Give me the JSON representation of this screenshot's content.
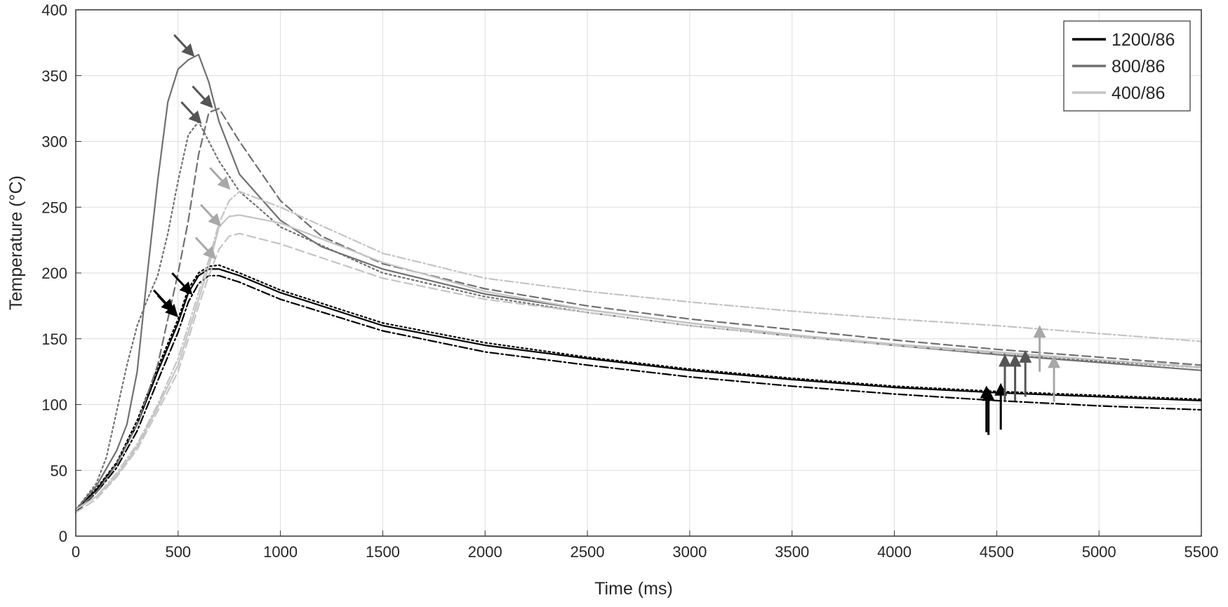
{
  "chart_data": {
    "type": "line",
    "title": "",
    "xlabel": "Time (ms)",
    "ylabel": "Temperature (°C)",
    "xlim": [
      0,
      5500
    ],
    "ylim": [
      0,
      400
    ],
    "xticks": [
      0,
      500,
      1000,
      1500,
      2000,
      2500,
      3000,
      3500,
      4000,
      4500,
      5000,
      5500
    ],
    "yticks": [
      0,
      50,
      100,
      150,
      200,
      250,
      300,
      350,
      400
    ],
    "grid": true,
    "legend_position": "top-right",
    "legend": [
      {
        "label": "1200/86",
        "color": "#000000"
      },
      {
        "label": "800/86",
        "color": "#707070"
      },
      {
        "label": "400/86",
        "color": "#c4c4c4"
      }
    ],
    "series": [
      {
        "group": "1200/86",
        "color": "#000000",
        "style": "solid",
        "x": [
          0,
          100,
          200,
          300,
          400,
          500,
          550,
          600,
          650,
          700,
          800,
          1000,
          1500,
          2000,
          2500,
          3000,
          3500,
          4000,
          4500,
          5000,
          5500
        ],
        "y": [
          20,
          35,
          55,
          85,
          125,
          162,
          185,
          198,
          203,
          203,
          198,
          185,
          160,
          145,
          135,
          126,
          119,
          113,
          109,
          106,
          103
        ]
      },
      {
        "group": "1200/86",
        "color": "#000000",
        "style": "dashdot",
        "x": [
          0,
          100,
          200,
          300,
          400,
          500,
          550,
          600,
          650,
          700,
          800,
          1000,
          1500,
          2000,
          2500,
          3000,
          3500,
          4000,
          4500,
          5000,
          5500
        ],
        "y": [
          18,
          33,
          52,
          80,
          118,
          155,
          178,
          192,
          198,
          198,
          193,
          180,
          156,
          140,
          130,
          121,
          114,
          108,
          103,
          99,
          96
        ]
      },
      {
        "group": "1200/86",
        "color": "#000000",
        "style": "dotted",
        "x": [
          0,
          100,
          200,
          300,
          400,
          500,
          550,
          600,
          650,
          700,
          800,
          1000,
          1500,
          2000,
          2500,
          3000,
          3500,
          4000,
          4500,
          5000,
          5500
        ],
        "y": [
          20,
          36,
          56,
          88,
          128,
          165,
          188,
          200,
          205,
          206,
          200,
          187,
          162,
          147,
          136,
          127,
          120,
          114,
          110,
          107,
          104
        ]
      },
      {
        "group": "800/86",
        "color": "#707070",
        "style": "solid",
        "x": [
          0,
          100,
          200,
          250,
          300,
          350,
          400,
          450,
          500,
          550,
          600,
          650,
          700,
          800,
          1000,
          1200,
          1500,
          2000,
          2500,
          3000,
          3500,
          4000,
          4500,
          5000,
          5500
        ],
        "y": [
          20,
          38,
          65,
          85,
          125,
          200,
          270,
          330,
          355,
          362,
          366,
          345,
          315,
          275,
          240,
          220,
          203,
          184,
          172,
          162,
          153,
          145,
          138,
          132,
          126
        ]
      },
      {
        "group": "800/86",
        "color": "#707070",
        "style": "dashed",
        "x": [
          0,
          100,
          200,
          300,
          400,
          450,
          500,
          550,
          600,
          650,
          700,
          800,
          1000,
          1200,
          1500,
          2000,
          2500,
          3000,
          3500,
          4000,
          4500,
          5000,
          5500
        ],
        "y": [
          20,
          33,
          55,
          85,
          130,
          165,
          200,
          240,
          290,
          322,
          325,
          300,
          255,
          228,
          207,
          188,
          175,
          165,
          157,
          149,
          142,
          136,
          130
        ]
      },
      {
        "group": "800/86",
        "color": "#707070",
        "style": "dotted",
        "x": [
          0,
          100,
          150,
          200,
          250,
          300,
          350,
          400,
          450,
          500,
          550,
          600,
          650,
          700,
          800,
          1000,
          1500,
          2000,
          2500,
          3000,
          3500,
          4000,
          4500,
          5000,
          5500
        ],
        "y": [
          20,
          40,
          60,
          95,
          130,
          160,
          180,
          198,
          230,
          270,
          305,
          315,
          300,
          285,
          262,
          235,
          200,
          182,
          170,
          160,
          152,
          145,
          139,
          133,
          128
        ]
      },
      {
        "group": "400/86",
        "color": "#c4c4c4",
        "style": "dashdot",
        "x": [
          0,
          100,
          200,
          300,
          400,
          500,
          550,
          600,
          650,
          700,
          750,
          800,
          1000,
          1500,
          2000,
          2500,
          3000,
          3500,
          4000,
          4500,
          5000,
          5500
        ],
        "y": [
          20,
          30,
          48,
          70,
          100,
          135,
          160,
          185,
          210,
          238,
          255,
          262,
          250,
          215,
          196,
          186,
          178,
          171,
          165,
          160,
          154,
          148
        ]
      },
      {
        "group": "400/86",
        "color": "#c4c4c4",
        "style": "solid",
        "x": [
          0,
          100,
          200,
          300,
          400,
          500,
          550,
          600,
          650,
          700,
          750,
          800,
          1000,
          1500,
          2000,
          2500,
          3000,
          3500,
          4000,
          4500,
          5000,
          5500
        ],
        "y": [
          20,
          30,
          46,
          68,
          98,
          130,
          155,
          180,
          205,
          235,
          243,
          244,
          238,
          208,
          186,
          172,
          162,
          153,
          146,
          140,
          134,
          128
        ]
      },
      {
        "group": "400/86",
        "color": "#c4c4c4",
        "style": "dashed",
        "x": [
          0,
          100,
          200,
          300,
          400,
          500,
          550,
          600,
          650,
          700,
          750,
          800,
          1000,
          1500,
          2000,
          2500,
          3000,
          3500,
          4000,
          4500,
          5000,
          5500
        ],
        "y": [
          18,
          28,
          45,
          66,
          95,
          125,
          150,
          175,
          198,
          218,
          228,
          230,
          222,
          196,
          180,
          170,
          160,
          152,
          145,
          139,
          134,
          129
        ]
      }
    ],
    "annotations": [
      {
        "type": "arrow",
        "direction": "down-right",
        "color": "#000000",
        "x": 470,
        "y": 172
      },
      {
        "type": "arrow",
        "direction": "down-right",
        "color": "#000000",
        "x": 490,
        "y": 168
      },
      {
        "type": "arrow",
        "direction": "down-right",
        "color": "#000000",
        "x": 560,
        "y": 185
      },
      {
        "type": "arrow",
        "direction": "down-right",
        "color": "#555555",
        "x": 570,
        "y": 366
      },
      {
        "type": "arrow",
        "direction": "down-right",
        "color": "#555555",
        "x": 660,
        "y": 327
      },
      {
        "type": "arrow",
        "direction": "down-right",
        "color": "#555555",
        "x": 605,
        "y": 315
      },
      {
        "type": "arrow",
        "direction": "down-right",
        "color": "#a8a8a8",
        "x": 745,
        "y": 265
      },
      {
        "type": "arrow",
        "direction": "down-right",
        "color": "#a8a8a8",
        "x": 700,
        "y": 237
      },
      {
        "type": "arrow",
        "direction": "down-right",
        "color": "#a8a8a8",
        "x": 675,
        "y": 212
      },
      {
        "type": "arrow",
        "direction": "up",
        "color": "#000000",
        "x": 4450,
        "y": 112
      },
      {
        "type": "arrow",
        "direction": "up",
        "color": "#000000",
        "x": 4460,
        "y": 110
      },
      {
        "type": "arrow",
        "direction": "up",
        "color": "#000000",
        "x": 4520,
        "y": 114
      },
      {
        "type": "arrow",
        "direction": "up",
        "color": "#555555",
        "x": 4540,
        "y": 136
      },
      {
        "type": "arrow",
        "direction": "up",
        "color": "#555555",
        "x": 4590,
        "y": 136
      },
      {
        "type": "arrow",
        "direction": "up",
        "color": "#555555",
        "x": 4640,
        "y": 139
      },
      {
        "type": "arrow",
        "direction": "up",
        "color": "#a8a8a8",
        "x": 4710,
        "y": 158
      },
      {
        "type": "arrow",
        "direction": "up",
        "color": "#a8a8a8",
        "x": 4780,
        "y": 135
      }
    ]
  }
}
